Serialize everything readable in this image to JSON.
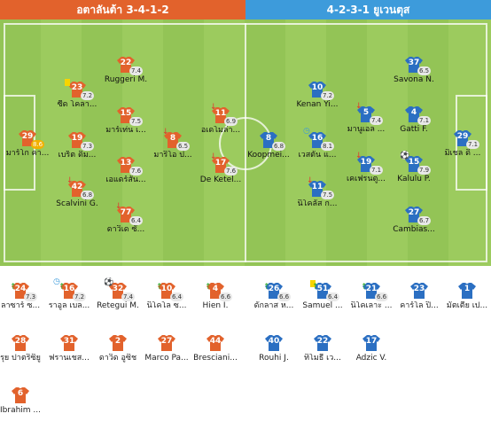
{
  "header": {
    "home": "อตาลันต้า 3-4-1-2",
    "away": "4-2-3-1 ยูเวนตุส"
  },
  "colors": {
    "home": "#e2622c",
    "away": "#2b6fc2",
    "home_banner": "#e2622c",
    "away_banner": "#3d9bdb",
    "pitch": "#93c456",
    "rating_high": "#f2b100"
  },
  "home_lineup": [
    {
      "num": "29",
      "name": "มาร์โก คา...",
      "rating": "8.6",
      "high": true
    },
    {
      "num": "23",
      "name": "ซีด โคลา...",
      "rating": "7.2",
      "card": "yellow"
    },
    {
      "num": "19",
      "name": "เบร็ต ดิม...",
      "rating": "7.3"
    },
    {
      "num": "42",
      "name": "Scalvini G.",
      "rating": "6.8",
      "sub": "out"
    },
    {
      "num": "22",
      "name": "Ruggeri M.",
      "rating": "7.4"
    },
    {
      "num": "15",
      "name": "มาร์เท่น เ...",
      "rating": "7.5"
    },
    {
      "num": "13",
      "name": "เอแดร์สัน...",
      "rating": "7.6"
    },
    {
      "num": "77",
      "name": "ดาวิเด ซั...",
      "rating": "6.4",
      "sub": "out"
    },
    {
      "num": "8",
      "name": "มาริโอ ป...",
      "rating": "6.5",
      "sub": "out"
    },
    {
      "num": "11",
      "name": "อเดโมล่า...",
      "rating": "6.9",
      "sub": "out"
    },
    {
      "num": "17",
      "name": "De Ketel...",
      "rating": "7.6",
      "sub": "out"
    }
  ],
  "away_lineup": [
    {
      "num": "8",
      "name": "Koopmei...",
      "rating": "6.8"
    },
    {
      "num": "10",
      "name": "Kenan Yi...",
      "rating": "7.2"
    },
    {
      "num": "16",
      "name": "เวสตัน แ...",
      "rating": "8.1",
      "icon": "clock"
    },
    {
      "num": "11",
      "name": "นิโคลัส ก...",
      "rating": "7.5",
      "sub": "out"
    },
    {
      "num": "5",
      "name": "มานูเอล ...",
      "rating": "7.4",
      "sub": "out"
    },
    {
      "num": "19",
      "name": "เคเฟรนตู...",
      "rating": "7.1",
      "sub": "out"
    },
    {
      "num": "37",
      "name": "Savona N.",
      "rating": "6.5"
    },
    {
      "num": "4",
      "name": "Gatti F.",
      "rating": "7.1"
    },
    {
      "num": "15",
      "name": "Kalulu P.",
      "rating": "7.9",
      "goal": true
    },
    {
      "num": "27",
      "name": "Cambias...",
      "rating": "6.7"
    },
    {
      "num": "29",
      "name": "มิเชล ดิ ...",
      "rating": "7.1"
    }
  ],
  "home_subs": [
    {
      "num": "24",
      "name": "ลาซาร์ ซ...",
      "rating": "7.3",
      "sub": "in"
    },
    {
      "num": "16",
      "name": "ราอูล เบล...",
      "rating": "7.2",
      "sub": "in",
      "icon": "clock"
    },
    {
      "num": "32",
      "name": "Retegui M.",
      "rating": "7.4",
      "goal": true
    },
    {
      "num": "10",
      "name": "นิโคโล ซ...",
      "rating": "6.4",
      "sub": "in"
    },
    {
      "num": "4",
      "name": "Hien I.",
      "rating": "6.6",
      "sub": "in"
    },
    {
      "num": "28",
      "name": "รุย ปาตริซิยู",
      "rating": ""
    },
    {
      "num": "31",
      "name": "ฟรานเชส...",
      "rating": ""
    },
    {
      "num": "2",
      "name": "ดาวิด อูซิช",
      "rating": ""
    },
    {
      "num": "27",
      "name": "Marco Pa...",
      "rating": ""
    },
    {
      "num": "44",
      "name": "Bresciani...",
      "rating": ""
    },
    {
      "num": "6",
      "name": "Ibrahim ...",
      "rating": ""
    }
  ],
  "away_subs": [
    {
      "num": "26",
      "name": "ดักลาส ห...",
      "rating": "6.6",
      "sub": "in"
    },
    {
      "num": "51",
      "name": "Samuel ...",
      "rating": "6.4",
      "sub": "in",
      "card": "yellow"
    },
    {
      "num": "21",
      "name": "นิโคเลาะ ...",
      "rating": "6.6",
      "sub": "in"
    },
    {
      "num": "23",
      "name": "คาร์โล ปิ...",
      "rating": ""
    },
    {
      "num": "1",
      "name": "มัตเตีย เป...",
      "rating": ""
    },
    {
      "num": "40",
      "name": "Rouhi J.",
      "rating": ""
    },
    {
      "num": "22",
      "name": "ทิโมธี เว...",
      "rating": ""
    },
    {
      "num": "17",
      "name": "Adzic V.",
      "rating": ""
    }
  ]
}
